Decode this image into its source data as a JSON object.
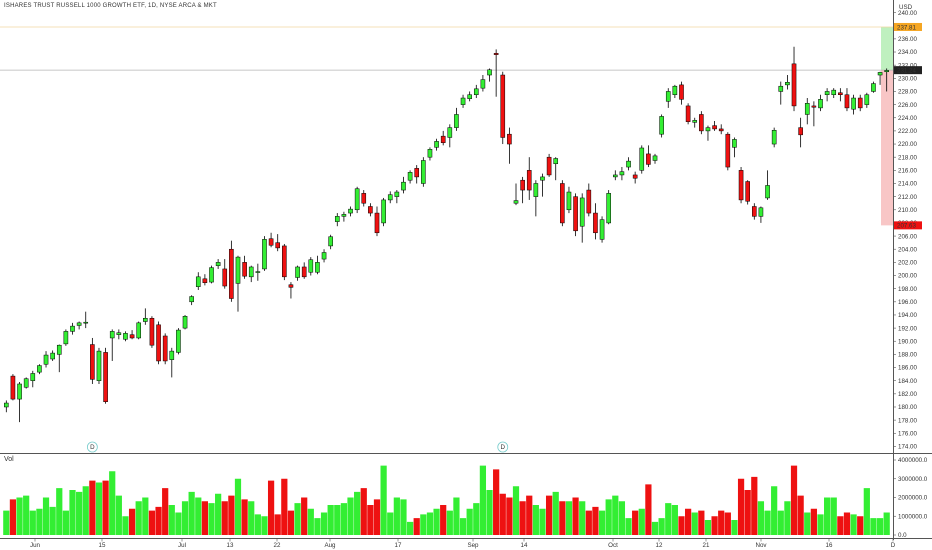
{
  "header": {
    "title": "ISHARES TRUST RUSSELL 1000 GROWTH ETF, 1D, NYSE ARCA & MKT"
  },
  "price_axis": {
    "currency": "USD",
    "labels": [
      "240.00",
      "236.00",
      "234.00",
      "232.00",
      "230.00",
      "228.00",
      "226.00",
      "224.00",
      "222.00",
      "220.00",
      "218.00",
      "216.00",
      "214.00",
      "212.00",
      "210.00",
      "208.00",
      "206.00",
      "204.00",
      "202.00",
      "200.00",
      "198.00",
      "196.00",
      "194.00",
      "192.00",
      "190.00",
      "188.00",
      "186.00",
      "184.00",
      "182.00",
      "180.00",
      "178.00",
      "176.00",
      "174.00"
    ]
  },
  "volume_axis": {
    "labels": [
      "4000000.0",
      "3000000.0",
      "2000000.0",
      "1000000.0",
      "0.0"
    ],
    "pane_label": "Vol"
  },
  "markers": {
    "last_price": "231.24",
    "target_top": "237.81",
    "stop": "207.63",
    "dividend_label": "D"
  },
  "colors": {
    "up": "#33ee33",
    "down": "#ee1111",
    "wick": "#000000",
    "target_zone": "#bff0bf",
    "stop_zone": "#f8c6c6",
    "target_tag": "#f5a623",
    "last_tag": "#222222",
    "stop_tag": "#ee1111"
  },
  "x_axis_labels": [
    "Jun",
    "15",
    "Jul",
    "13",
    "22",
    "Aug",
    "17",
    "Sep",
    "14",
    "Oct",
    "12",
    "21",
    "Nov",
    "16",
    "D"
  ],
  "chart_data": {
    "type": "candlestick",
    "title": "ISHARES TRUST RUSSELL 1000 GROWTH ETF, 1D, NYSE ARCA & MKT",
    "ylim": [
      173,
      241
    ],
    "volume_ylim": [
      0,
      4000000
    ],
    "candles": [
      {
        "o": 180.0,
        "h": 181.0,
        "l": 179.2,
        "c": 180.6,
        "v": 1300000
      },
      {
        "o": 184.7,
        "h": 185.0,
        "l": 181.0,
        "c": 181.2,
        "v": 1900000
      },
      {
        "o": 181.2,
        "h": 183.8,
        "l": 177.7,
        "c": 183.5,
        "v": 2000000
      },
      {
        "o": 183.0,
        "h": 184.5,
        "l": 182.8,
        "c": 184.3,
        "v": 2100000
      },
      {
        "o": 184.0,
        "h": 185.5,
        "l": 183.0,
        "c": 185.1,
        "v": 1300000
      },
      {
        "o": 185.3,
        "h": 186.5,
        "l": 185.0,
        "c": 186.3,
        "v": 1400000
      },
      {
        "o": 186.5,
        "h": 188.5,
        "l": 186.0,
        "c": 187.9,
        "v": 2000000
      },
      {
        "o": 187.3,
        "h": 188.6,
        "l": 187.0,
        "c": 188.2,
        "v": 1500000
      },
      {
        "o": 188.0,
        "h": 189.5,
        "l": 185.3,
        "c": 189.4,
        "v": 2500000
      },
      {
        "o": 189.6,
        "h": 191.8,
        "l": 189.3,
        "c": 191.5,
        "v": 1300000
      },
      {
        "o": 191.5,
        "h": 192.8,
        "l": 191.0,
        "c": 192.3,
        "v": 2400000
      },
      {
        "o": 192.4,
        "h": 193.0,
        "l": 191.8,
        "c": 192.8,
        "v": 2300000
      },
      {
        "o": 192.8,
        "h": 194.5,
        "l": 192.0,
        "c": 192.9,
        "v": 2600000
      },
      {
        "o": 189.5,
        "h": 190.5,
        "l": 183.5,
        "c": 184.2,
        "v": 2900000
      },
      {
        "o": 184.0,
        "h": 189.0,
        "l": 183.5,
        "c": 188.5,
        "v": 2800000
      },
      {
        "o": 188.3,
        "h": 189.0,
        "l": 180.5,
        "c": 180.8,
        "v": 2900000
      },
      {
        "o": 190.5,
        "h": 191.8,
        "l": 187.0,
        "c": 191.5,
        "v": 3400000
      },
      {
        "o": 191.0,
        "h": 191.8,
        "l": 190.3,
        "c": 191.3,
        "v": 2100000
      },
      {
        "o": 190.3,
        "h": 191.5,
        "l": 190.0,
        "c": 191.2,
        "v": 1000000
      },
      {
        "o": 191.0,
        "h": 191.7,
        "l": 190.3,
        "c": 190.5,
        "v": 1400000
      },
      {
        "o": 190.5,
        "h": 193.0,
        "l": 190.3,
        "c": 192.8,
        "v": 1800000
      },
      {
        "o": 193.0,
        "h": 195.0,
        "l": 192.5,
        "c": 193.5,
        "v": 2000000
      },
      {
        "o": 193.5,
        "h": 193.8,
        "l": 189.0,
        "c": 189.4,
        "v": 1300000
      },
      {
        "o": 192.5,
        "h": 193.0,
        "l": 186.5,
        "c": 187.0,
        "v": 1500000
      },
      {
        "o": 190.8,
        "h": 191.2,
        "l": 186.5,
        "c": 187.0,
        "v": 2500000
      },
      {
        "o": 187.2,
        "h": 189.0,
        "l": 184.5,
        "c": 188.5,
        "v": 1600000
      },
      {
        "o": 188.3,
        "h": 192.0,
        "l": 188.0,
        "c": 191.7,
        "v": 1200000
      },
      {
        "o": 192.0,
        "h": 194.0,
        "l": 191.8,
        "c": 193.8,
        "v": 1800000
      },
      {
        "o": 196.0,
        "h": 197.0,
        "l": 195.5,
        "c": 196.8,
        "v": 2300000
      },
      {
        "o": 198.3,
        "h": 200.5,
        "l": 197.8,
        "c": 199.8,
        "v": 2000000
      },
      {
        "o": 199.5,
        "h": 200.2,
        "l": 198.5,
        "c": 198.9,
        "v": 1800000
      },
      {
        "o": 199.0,
        "h": 201.5,
        "l": 198.8,
        "c": 201.2,
        "v": 1700000
      },
      {
        "o": 201.5,
        "h": 202.5,
        "l": 201.0,
        "c": 202.0,
        "v": 2200000
      },
      {
        "o": 201.0,
        "h": 202.5,
        "l": 198.0,
        "c": 198.4,
        "v": 1800000
      },
      {
        "o": 204.0,
        "h": 205.3,
        "l": 196.0,
        "c": 196.5,
        "v": 2100000
      },
      {
        "o": 198.8,
        "h": 203.0,
        "l": 194.5,
        "c": 202.8,
        "v": 3000000
      },
      {
        "o": 202.0,
        "h": 203.0,
        "l": 199.5,
        "c": 199.9,
        "v": 1900000
      },
      {
        "o": 199.8,
        "h": 201.5,
        "l": 199.0,
        "c": 201.3,
        "v": 1800000
      },
      {
        "o": 200.5,
        "h": 201.8,
        "l": 199.2,
        "c": 200.6,
        "v": 1100000
      },
      {
        "o": 201.0,
        "h": 206.0,
        "l": 200.7,
        "c": 205.5,
        "v": 1000000
      },
      {
        "o": 205.6,
        "h": 206.5,
        "l": 204.3,
        "c": 204.6,
        "v": 2900000
      },
      {
        "o": 205.0,
        "h": 206.3,
        "l": 203.7,
        "c": 204.2,
        "v": 1100000
      },
      {
        "o": 204.5,
        "h": 204.8,
        "l": 199.3,
        "c": 199.8,
        "v": 3000000
      },
      {
        "o": 198.6,
        "h": 199.0,
        "l": 196.5,
        "c": 198.2,
        "v": 1300000
      },
      {
        "o": 199.7,
        "h": 201.5,
        "l": 199.2,
        "c": 201.3,
        "v": 1700000
      },
      {
        "o": 201.3,
        "h": 202.0,
        "l": 199.5,
        "c": 199.8,
        "v": 2000000
      },
      {
        "o": 200.5,
        "h": 202.8,
        "l": 200.0,
        "c": 202.4,
        "v": 1400000
      },
      {
        "o": 200.5,
        "h": 203.0,
        "l": 200.2,
        "c": 202.0,
        "v": 900000
      },
      {
        "o": 202.5,
        "h": 204.0,
        "l": 202.0,
        "c": 203.5,
        "v": 1200000
      },
      {
        "o": 204.5,
        "h": 206.2,
        "l": 204.0,
        "c": 205.9,
        "v": 1600000
      },
      {
        "o": 208.2,
        "h": 209.5,
        "l": 207.5,
        "c": 209.0,
        "v": 1600000
      },
      {
        "o": 209.0,
        "h": 209.7,
        "l": 208.2,
        "c": 209.3,
        "v": 1700000
      },
      {
        "o": 209.5,
        "h": 210.5,
        "l": 209.0,
        "c": 210.1,
        "v": 2000000
      },
      {
        "o": 210.0,
        "h": 213.5,
        "l": 209.5,
        "c": 213.2,
        "v": 2300000
      },
      {
        "o": 212.5,
        "h": 213.0,
        "l": 210.5,
        "c": 211.0,
        "v": 2500000
      },
      {
        "o": 210.5,
        "h": 211.0,
        "l": 209.0,
        "c": 209.5,
        "v": 1600000
      },
      {
        "o": 209.5,
        "h": 210.5,
        "l": 206.0,
        "c": 206.5,
        "v": 1900000
      },
      {
        "o": 208.0,
        "h": 211.8,
        "l": 207.5,
        "c": 211.5,
        "v": 3700000
      },
      {
        "o": 211.5,
        "h": 212.8,
        "l": 211.0,
        "c": 212.3,
        "v": 1200000
      },
      {
        "o": 212.0,
        "h": 213.0,
        "l": 211.0,
        "c": 212.7,
        "v": 2000000
      },
      {
        "o": 213.0,
        "h": 215.0,
        "l": 212.5,
        "c": 214.2,
        "v": 1900000
      },
      {
        "o": 214.5,
        "h": 216.0,
        "l": 214.0,
        "c": 215.7,
        "v": 700000
      },
      {
        "o": 216.3,
        "h": 216.8,
        "l": 214.0,
        "c": 215.0,
        "v": 900000
      },
      {
        "o": 214.0,
        "h": 218.0,
        "l": 213.5,
        "c": 217.5,
        "v": 1100000
      },
      {
        "o": 218.0,
        "h": 219.5,
        "l": 217.5,
        "c": 219.2,
        "v": 1200000
      },
      {
        "o": 219.5,
        "h": 220.8,
        "l": 219.0,
        "c": 220.4,
        "v": 1400000
      },
      {
        "o": 221.2,
        "h": 222.0,
        "l": 219.8,
        "c": 220.2,
        "v": 1600000
      },
      {
        "o": 221.0,
        "h": 223.0,
        "l": 219.5,
        "c": 222.5,
        "v": 1300000
      },
      {
        "o": 222.5,
        "h": 225.5,
        "l": 222.0,
        "c": 224.5,
        "v": 2000000
      },
      {
        "o": 226.0,
        "h": 227.5,
        "l": 225.5,
        "c": 227.0,
        "v": 900000
      },
      {
        "o": 226.9,
        "h": 228.0,
        "l": 226.5,
        "c": 227.5,
        "v": 1400000
      },
      {
        "o": 227.5,
        "h": 229.0,
        "l": 227.0,
        "c": 228.4,
        "v": 1700000
      },
      {
        "o": 228.5,
        "h": 230.5,
        "l": 228.0,
        "c": 229.8,
        "v": 3700000
      },
      {
        "o": 230.5,
        "h": 231.5,
        "l": 229.5,
        "c": 231.3,
        "v": 2400000
      },
      {
        "o": 233.8,
        "h": 234.4,
        "l": 227.2,
        "c": 233.6,
        "v": 3500000
      },
      {
        "o": 230.5,
        "h": 231.0,
        "l": 220.0,
        "c": 221.0,
        "v": 2200000
      },
      {
        "o": 221.5,
        "h": 222.5,
        "l": 217.0,
        "c": 220.0,
        "v": 2000000
      },
      {
        "o": 211.0,
        "h": 214.0,
        "l": 210.7,
        "c": 211.4,
        "v": 2600000
      },
      {
        "o": 214.5,
        "h": 215.0,
        "l": 211.0,
        "c": 213.0,
        "v": 1800000
      },
      {
        "o": 216.0,
        "h": 218.0,
        "l": 211.5,
        "c": 213.0,
        "v": 2100000
      },
      {
        "o": 212.0,
        "h": 214.5,
        "l": 209.0,
        "c": 214.0,
        "v": 1600000
      },
      {
        "o": 214.5,
        "h": 215.5,
        "l": 212.0,
        "c": 215.0,
        "v": 1400000
      },
      {
        "o": 218.0,
        "h": 218.5,
        "l": 215.0,
        "c": 215.3,
        "v": 2100000
      },
      {
        "o": 217.0,
        "h": 218.0,
        "l": 214.5,
        "c": 217.8,
        "v": 2300000
      },
      {
        "o": 214.0,
        "h": 214.5,
        "l": 207.5,
        "c": 208.0,
        "v": 1800000
      },
      {
        "o": 210.0,
        "h": 213.5,
        "l": 209.5,
        "c": 212.7,
        "v": 1800000
      },
      {
        "o": 212.0,
        "h": 212.5,
        "l": 206.0,
        "c": 206.8,
        "v": 2000000
      },
      {
        "o": 207.5,
        "h": 212.5,
        "l": 205.0,
        "c": 211.8,
        "v": 1800000
      },
      {
        "o": 213.0,
        "h": 214.0,
        "l": 209.0,
        "c": 209.5,
        "v": 1300000
      },
      {
        "o": 209.5,
        "h": 211.0,
        "l": 205.5,
        "c": 206.5,
        "v": 1500000
      },
      {
        "o": 205.5,
        "h": 209.0,
        "l": 205.0,
        "c": 208.5,
        "v": 1300000
      },
      {
        "o": 208.0,
        "h": 213.0,
        "l": 207.8,
        "c": 212.5,
        "v": 1900000
      },
      {
        "o": 215.0,
        "h": 216.0,
        "l": 214.5,
        "c": 215.3,
        "v": 2100000
      },
      {
        "o": 215.3,
        "h": 216.5,
        "l": 214.5,
        "c": 215.8,
        "v": 1800000
      },
      {
        "o": 216.5,
        "h": 218.0,
        "l": 216.0,
        "c": 217.4,
        "v": 900000
      },
      {
        "o": 215.3,
        "h": 215.8,
        "l": 214.0,
        "c": 214.8,
        "v": 1300000
      },
      {
        "o": 216.0,
        "h": 219.8,
        "l": 215.5,
        "c": 219.4,
        "v": 1400000
      },
      {
        "o": 218.5,
        "h": 219.8,
        "l": 216.5,
        "c": 216.9,
        "v": 2700000
      },
      {
        "o": 217.5,
        "h": 218.5,
        "l": 217.0,
        "c": 218.2,
        "v": 700000
      },
      {
        "o": 221.5,
        "h": 224.5,
        "l": 221.0,
        "c": 224.2,
        "v": 900000
      },
      {
        "o": 226.5,
        "h": 228.5,
        "l": 225.5,
        "c": 228.0,
        "v": 1700000
      },
      {
        "o": 227.5,
        "h": 229.0,
        "l": 227.0,
        "c": 228.8,
        "v": 1600000
      },
      {
        "o": 229.0,
        "h": 229.5,
        "l": 226.0,
        "c": 226.8,
        "v": 1000000
      },
      {
        "o": 225.8,
        "h": 226.2,
        "l": 223.0,
        "c": 223.4,
        "v": 1400000
      },
      {
        "o": 223.3,
        "h": 224.0,
        "l": 222.5,
        "c": 223.6,
        "v": 1200000
      },
      {
        "o": 224.5,
        "h": 225.0,
        "l": 221.5,
        "c": 222.0,
        "v": 1300000
      },
      {
        "o": 222.0,
        "h": 222.8,
        "l": 220.5,
        "c": 222.5,
        "v": 800000
      },
      {
        "o": 222.8,
        "h": 223.5,
        "l": 222.0,
        "c": 222.3,
        "v": 1000000
      },
      {
        "o": 222.3,
        "h": 223.0,
        "l": 221.5,
        "c": 222.0,
        "v": 1300000
      },
      {
        "o": 221.5,
        "h": 221.8,
        "l": 216.0,
        "c": 216.5,
        "v": 1200000
      },
      {
        "o": 219.5,
        "h": 221.0,
        "l": 218.0,
        "c": 220.7,
        "v": 800000
      },
      {
        "o": 216.0,
        "h": 216.5,
        "l": 211.0,
        "c": 211.5,
        "v": 3000000
      },
      {
        "o": 214.3,
        "h": 214.5,
        "l": 210.8,
        "c": 211.3,
        "v": 2400000
      },
      {
        "o": 210.5,
        "h": 211.0,
        "l": 208.5,
        "c": 209.0,
        "v": 3100000
      },
      {
        "o": 209.0,
        "h": 210.5,
        "l": 208.0,
        "c": 210.3,
        "v": 1800000
      },
      {
        "o": 211.8,
        "h": 216.0,
        "l": 211.5,
        "c": 213.7,
        "v": 1300000
      },
      {
        "o": 220.0,
        "h": 222.5,
        "l": 219.5,
        "c": 222.1,
        "v": 2600000
      },
      {
        "o": 228.0,
        "h": 229.5,
        "l": 226.0,
        "c": 228.8,
        "v": 1300000
      },
      {
        "o": 229.0,
        "h": 230.5,
        "l": 228.3,
        "c": 229.4,
        "v": 1800000
      },
      {
        "o": 232.2,
        "h": 234.8,
        "l": 225.0,
        "c": 225.8,
        "v": 3700000
      },
      {
        "o": 222.5,
        "h": 224.0,
        "l": 219.5,
        "c": 221.4,
        "v": 2100000
      },
      {
        "o": 224.5,
        "h": 227.0,
        "l": 223.0,
        "c": 226.2,
        "v": 1200000
      },
      {
        "o": 225.8,
        "h": 226.5,
        "l": 222.7,
        "c": 225.6,
        "v": 1400000
      },
      {
        "o": 225.5,
        "h": 227.5,
        "l": 225.0,
        "c": 226.8,
        "v": 1100000
      },
      {
        "o": 227.5,
        "h": 228.5,
        "l": 226.5,
        "c": 228.0,
        "v": 2000000
      },
      {
        "o": 227.5,
        "h": 228.5,
        "l": 227.0,
        "c": 228.2,
        "v": 2000000
      },
      {
        "o": 227.8,
        "h": 228.5,
        "l": 226.5,
        "c": 227.5,
        "v": 1000000
      },
      {
        "o": 227.5,
        "h": 228.5,
        "l": 225.0,
        "c": 225.5,
        "v": 1200000
      },
      {
        "o": 225.3,
        "h": 227.5,
        "l": 224.5,
        "c": 227.0,
        "v": 1100000
      },
      {
        "o": 227.0,
        "h": 227.5,
        "l": 225.0,
        "c": 225.5,
        "v": 1000000
      },
      {
        "o": 226.0,
        "h": 227.8,
        "l": 225.5,
        "c": 227.5,
        "v": 2500000
      },
      {
        "o": 228.0,
        "h": 229.5,
        "l": 227.8,
        "c": 229.2,
        "v": 900000
      },
      {
        "o": 230.5,
        "h": 231.0,
        "l": 229.0,
        "c": 230.9,
        "v": 900000
      },
      {
        "o": 231.0,
        "h": 231.5,
        "l": 228.0,
        "c": 231.2,
        "v": 1200000
      }
    ],
    "dividends_at_index": [
      13,
      75
    ],
    "position": {
      "entry": 231.24,
      "target": 237.81,
      "stop": 207.63
    }
  }
}
